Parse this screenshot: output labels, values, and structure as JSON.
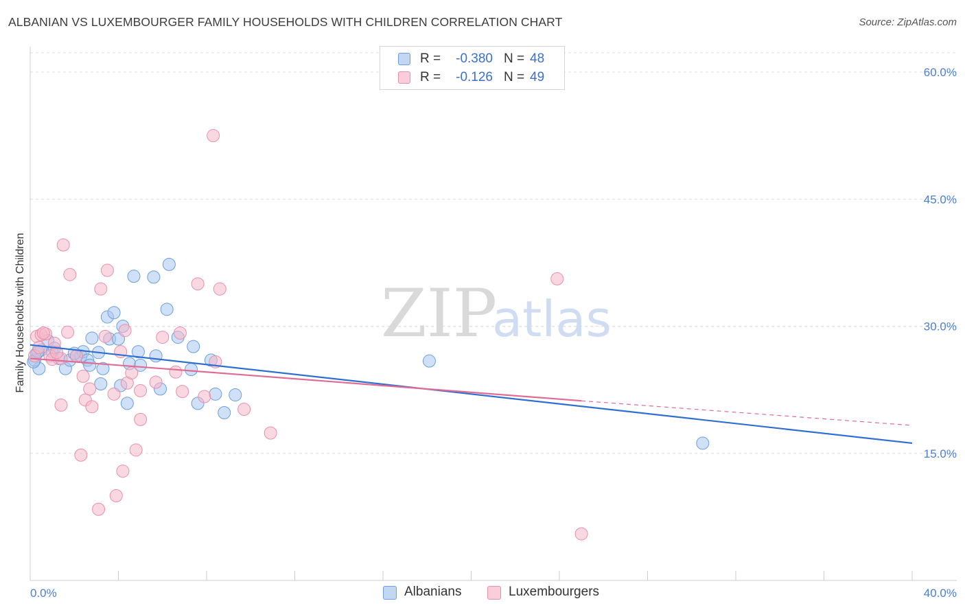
{
  "title": "ALBANIAN VS LUXEMBOURGER FAMILY HOUSEHOLDS WITH CHILDREN CORRELATION CHART",
  "source": "Source: ZipAtlas.com",
  "watermark": {
    "part1": "ZIP",
    "part2": "atlas"
  },
  "colors": {
    "albanian_fill": "#a9c6ef",
    "albanian_stroke": "#6a9ee0",
    "albanian_line": "#2f6fd1",
    "luxembourger_fill": "#f5b8cb",
    "luxembourger_stroke": "#e88fab",
    "luxembourger_line": "#e06b93",
    "tick_label": "#4a7fd1",
    "grid": "#dddddd"
  },
  "legend": {
    "albanian": {
      "r_label": "R =",
      "r_value": "-0.380",
      "n_label": "N =",
      "n_value": "48"
    },
    "luxembourger": {
      "r_label": "R =",
      "r_value": "-0.126",
      "n_label": "N =",
      "n_value": "49"
    }
  },
  "bottom_legend": {
    "albanians": "Albanians",
    "luxembourgers": "Luxembourgers"
  },
  "chart_data": {
    "type": "scatter",
    "title": "ALBANIAN VS LUXEMBOURGER FAMILY HOUSEHOLDS WITH CHILDREN CORRELATION CHART",
    "xlabel": "",
    "ylabel": "Family Households with Children",
    "xlim": [
      0,
      40
    ],
    "ylim": [
      0,
      63
    ],
    "x_tick_labels": [
      "0.0%",
      "40.0%"
    ],
    "y_ticks": [
      15,
      30,
      45,
      60
    ],
    "y_tick_labels": [
      "15.0%",
      "30.0%",
      "45.0%",
      "60.0%"
    ],
    "grid": true,
    "series": [
      {
        "name": "Albanians",
        "r": -0.38,
        "n": 48,
        "trend": {
          "x": [
            0,
            40
          ],
          "y": [
            27.8,
            16.2
          ],
          "dashed_to": null
        },
        "points": [
          [
            0.3,
            26.8
          ],
          [
            0.4,
            25.0
          ],
          [
            0.5,
            27.2
          ],
          [
            0.2,
            26.0
          ],
          [
            0.8,
            28.3
          ],
          [
            1.0,
            27.0
          ],
          [
            1.1,
            27.4
          ],
          [
            1.3,
            26.2
          ],
          [
            1.6,
            25.0
          ],
          [
            1.8,
            26.0
          ],
          [
            2.1,
            26.5
          ],
          [
            2.3,
            26.5
          ],
          [
            2.4,
            27.0
          ],
          [
            2.6,
            26.0
          ],
          [
            2.7,
            25.4
          ],
          [
            2.8,
            28.6
          ],
          [
            3.1,
            26.9
          ],
          [
            3.2,
            23.2
          ],
          [
            3.3,
            25.0
          ],
          [
            3.5,
            31.1
          ],
          [
            3.6,
            28.5
          ],
          [
            3.8,
            31.6
          ],
          [
            4.0,
            28.5
          ],
          [
            4.1,
            23.0
          ],
          [
            4.2,
            30.0
          ],
          [
            4.4,
            20.9
          ],
          [
            4.5,
            25.6
          ],
          [
            4.7,
            35.9
          ],
          [
            4.9,
            27.0
          ],
          [
            5.0,
            25.4
          ],
          [
            5.6,
            35.8
          ],
          [
            5.7,
            26.5
          ],
          [
            5.9,
            22.6
          ],
          [
            6.2,
            32.0
          ],
          [
            6.3,
            37.3
          ],
          [
            6.7,
            28.7
          ],
          [
            7.3,
            24.9
          ],
          [
            7.4,
            27.6
          ],
          [
            7.6,
            20.9
          ],
          [
            8.2,
            26.0
          ],
          [
            8.4,
            22.0
          ],
          [
            8.8,
            19.8
          ],
          [
            9.3,
            21.9
          ],
          [
            18.1,
            25.9
          ],
          [
            30.5,
            16.2
          ],
          [
            0.15,
            25.8
          ],
          [
            0.35,
            27.0
          ],
          [
            2.0,
            26.8
          ]
        ]
      },
      {
        "name": "Luxembourgers",
        "r": -0.126,
        "n": 49,
        "trend": {
          "x": [
            0,
            25
          ],
          "y": [
            26.2,
            21.2
          ],
          "dashed_to": [
            40,
            18.3
          ]
        },
        "points": [
          [
            0.2,
            26.5
          ],
          [
            0.3,
            28.8
          ],
          [
            0.4,
            27.5
          ],
          [
            0.5,
            29.0
          ],
          [
            0.7,
            29.1
          ],
          [
            0.9,
            26.5
          ],
          [
            1.0,
            26.1
          ],
          [
            1.1,
            28.0
          ],
          [
            1.4,
            26.2
          ],
          [
            1.4,
            20.7
          ],
          [
            1.5,
            39.6
          ],
          [
            1.7,
            29.3
          ],
          [
            1.8,
            36.1
          ],
          [
            2.1,
            26.5
          ],
          [
            2.3,
            14.8
          ],
          [
            2.4,
            24.1
          ],
          [
            2.5,
            21.3
          ],
          [
            2.7,
            22.6
          ],
          [
            2.8,
            20.5
          ],
          [
            3.1,
            8.4
          ],
          [
            3.2,
            34.4
          ],
          [
            3.4,
            28.8
          ],
          [
            3.5,
            36.6
          ],
          [
            3.8,
            22.0
          ],
          [
            3.9,
            10.0
          ],
          [
            4.1,
            27.0
          ],
          [
            4.2,
            12.9
          ],
          [
            4.3,
            29.5
          ],
          [
            4.4,
            23.3
          ],
          [
            4.6,
            24.5
          ],
          [
            4.8,
            15.4
          ],
          [
            5.0,
            19.0
          ],
          [
            5.0,
            22.4
          ],
          [
            5.7,
            23.4
          ],
          [
            6.0,
            28.7
          ],
          [
            6.6,
            24.6
          ],
          [
            6.8,
            29.2
          ],
          [
            6.9,
            22.3
          ],
          [
            7.6,
            35.0
          ],
          [
            7.9,
            21.7
          ],
          [
            8.3,
            52.5
          ],
          [
            8.4,
            25.8
          ],
          [
            8.6,
            34.4
          ],
          [
            9.7,
            20.2
          ],
          [
            10.9,
            17.4
          ],
          [
            23.9,
            35.6
          ],
          [
            25.0,
            5.5
          ],
          [
            0.6,
            29.2
          ],
          [
            1.2,
            26.9
          ]
        ]
      }
    ]
  }
}
